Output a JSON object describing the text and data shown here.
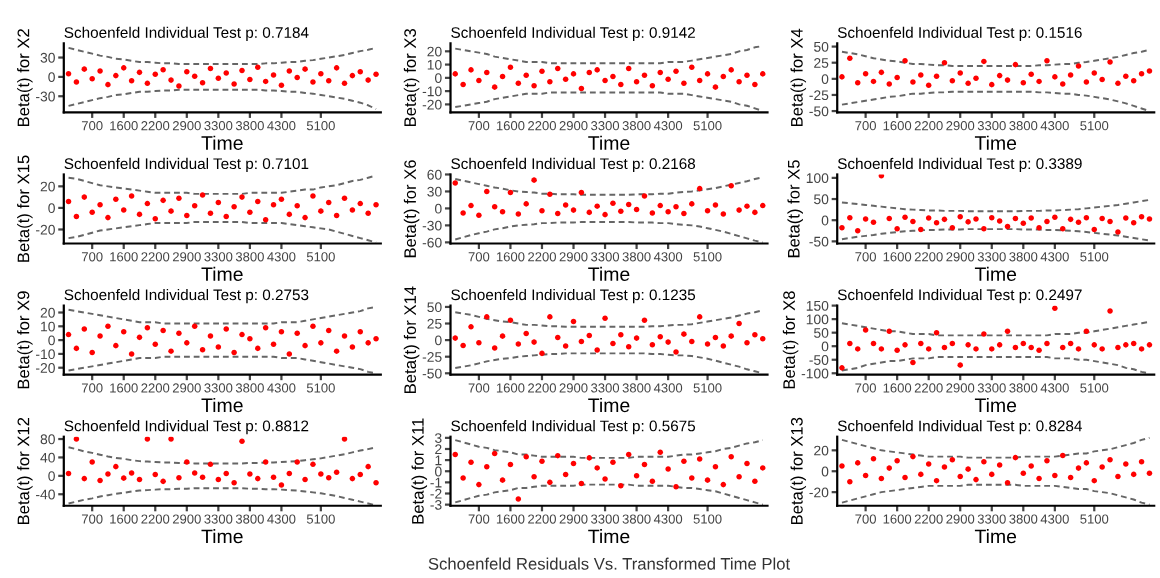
{
  "chart_data": [
    {
      "type": "scatter",
      "title": "Schoenfeld Individual Test p: 0.7184",
      "xlabel": "Time",
      "ylabel": "Beta(t) for X2",
      "categories": [
        null,
        null,
        null,
        "700",
        null,
        null,
        null,
        "1600",
        null,
        null,
        null,
        "2200",
        null,
        null,
        null,
        "2900",
        null,
        null,
        null,
        "3300",
        null,
        null,
        null,
        "3800",
        null,
        null,
        null,
        "4300",
        null,
        null,
        null,
        null,
        "5100",
        null,
        null,
        null,
        null,
        null,
        null,
        null
      ],
      "ylim": [
        -55,
        52
      ],
      "yticks": [
        -30,
        0,
        30
      ],
      "series": [
        {
          "marker": "circle",
          "color": "#ff0000",
          "values": [
            5,
            -8,
            12,
            -3,
            9,
            -12,
            2,
            14,
            -6,
            7,
            -10,
            4,
            11,
            -5,
            -14,
            8,
            1,
            -9,
            13,
            -2,
            6,
            -11,
            10,
            -4,
            15,
            -7,
            3,
            -13,
            9,
            -1,
            12,
            -8,
            5,
            -6,
            14,
            -10,
            2,
            8,
            -5,
            4
          ]
        },
        {
          "type": "line",
          "line_style": "dashed",
          "color": "#666666",
          "values": [
            45,
            42,
            39,
            36,
            33,
            31,
            28,
            27,
            25,
            23,
            23,
            22,
            21,
            21,
            20,
            20,
            20,
            20,
            20,
            20,
            20,
            20,
            20,
            20,
            20,
            21,
            21,
            22,
            23,
            23,
            25,
            26,
            28,
            30,
            32,
            34,
            37,
            40,
            42,
            45
          ]
        },
        {
          "type": "line",
          "line_style": "dashed",
          "color": "#666666",
          "values": [
            -45,
            -42,
            -39,
            -36,
            -33,
            -31,
            -28,
            -27,
            -25,
            -23,
            -23,
            -22,
            -21,
            -21,
            -20,
            -20,
            -20,
            -20,
            -20,
            -20,
            -20,
            -20,
            -20,
            -20,
            -20,
            -21,
            -21,
            -22,
            -23,
            -23,
            -25,
            -26,
            -28,
            -30,
            -32,
            -34,
            -37,
            -40,
            -44,
            -50
          ]
        }
      ]
    },
    {
      "type": "scatter",
      "title": "Schoenfeld Individual Test p: 0.9142",
      "xlabel": "Time",
      "ylabel": "Beta(t) for X3",
      "categories": [
        null,
        null,
        null,
        "700",
        null,
        null,
        null,
        "1600",
        null,
        null,
        null,
        "2200",
        null,
        null,
        null,
        "2900",
        null,
        null,
        null,
        "3300",
        null,
        null,
        null,
        "3800",
        null,
        null,
        null,
        "4300",
        null,
        null,
        null,
        null,
        "5100",
        null,
        null,
        null,
        null,
        null,
        null,
        null
      ],
      "ylim": [
        -26,
        26
      ],
      "yticks": [
        -20,
        -10,
        0,
        10,
        20
      ],
      "series": [
        {
          "marker": "circle",
          "color": "#ff0000",
          "values": [
            3,
            -5,
            6,
            -2,
            4,
            -7,
            1,
            8,
            -4,
            2,
            -6,
            5,
            -3,
            7,
            -1,
            3,
            -8,
            4,
            6,
            -2,
            1,
            -5,
            7,
            -3,
            2,
            -6,
            4,
            -1,
            5,
            -4,
            8,
            -2,
            3,
            -7,
            1,
            6,
            -3,
            2,
            -5,
            3
          ]
        },
        {
          "type": "line",
          "line_style": "dashed",
          "color": "#666666",
          "values": [
            22,
            21,
            20,
            19,
            18,
            16,
            15,
            14,
            13,
            12,
            12,
            12,
            11,
            11,
            11,
            11,
            11,
            11,
            11,
            11,
            11,
            11,
            11,
            11,
            11,
            11,
            11,
            12,
            12,
            12,
            13,
            14,
            15,
            16,
            17,
            18,
            20,
            21,
            23,
            24
          ]
        },
        {
          "type": "line",
          "line_style": "dashed",
          "color": "#666666",
          "values": [
            -22,
            -21,
            -20,
            -19,
            -18,
            -16,
            -15,
            -14,
            -13,
            -12,
            -12,
            -12,
            -11,
            -11,
            -11,
            -11,
            -11,
            -11,
            -11,
            -11,
            -11,
            -11,
            -11,
            -11,
            -11,
            -11,
            -11,
            -12,
            -12,
            -12,
            -13,
            -14,
            -15,
            -16,
            -17,
            -18,
            -20,
            -21,
            -23,
            -25
          ]
        }
      ]
    },
    {
      "type": "scatter",
      "title": "Schoenfeld Individual Test p: 0.1516",
      "xlabel": "Time",
      "ylabel": "Beta(t) for X4",
      "categories": [
        null,
        null,
        null,
        "700",
        null,
        null,
        null,
        "1600",
        null,
        null,
        null,
        "2200",
        null,
        null,
        null,
        "2900",
        null,
        null,
        null,
        "3300",
        null,
        null,
        null,
        "3800",
        null,
        null,
        null,
        "4300",
        null,
        null,
        null,
        null,
        "5100",
        null,
        null,
        null,
        null,
        null,
        null,
        null
      ],
      "ylim": [
        -52,
        55
      ],
      "yticks": [
        -50,
        -25,
        0,
        25,
        50
      ],
      "series": [
        {
          "marker": "circle",
          "color": "#ff0000",
          "values": [
            3,
            32,
            -6,
            8,
            -4,
            10,
            -8,
            2,
            28,
            -5,
            6,
            -10,
            4,
            25,
            -3,
            9,
            -7,
            1,
            27,
            -9,
            5,
            -2,
            22,
            -6,
            7,
            -4,
            28,
            3,
            -8,
            6,
            20,
            -5,
            9,
            -1,
            26,
            -7,
            4,
            -3,
            8,
            12
          ]
        },
        {
          "type": "line",
          "line_style": "dashed",
          "color": "#666666",
          "values": [
            42,
            40,
            38,
            35,
            32,
            30,
            28,
            27,
            25,
            23,
            23,
            22,
            21,
            21,
            20,
            20,
            20,
            20,
            20,
            20,
            20,
            20,
            20,
            20,
            20,
            21,
            21,
            22,
            23,
            23,
            25,
            26,
            28,
            30,
            32,
            34,
            37,
            40,
            42,
            45
          ]
        },
        {
          "type": "line",
          "line_style": "dashed",
          "color": "#666666",
          "values": [
            -40,
            -38,
            -36,
            -34,
            -32,
            -30,
            -28,
            -27,
            -25,
            -23,
            -23,
            -22,
            -21,
            -21,
            -20,
            -20,
            -20,
            -20,
            -20,
            -20,
            -20,
            -20,
            -20,
            -20,
            -20,
            -21,
            -21,
            -22,
            -23,
            -23,
            -25,
            -26,
            -28,
            -30,
            -32,
            -35,
            -38,
            -42,
            -46,
            -50
          ]
        }
      ]
    },
    {
      "type": "scatter",
      "title": "Schoenfeld Individual Test p: 0.7101",
      "xlabel": "Time",
      "ylabel": "Beta(t) for X15",
      "categories": [
        null,
        null,
        null,
        "700",
        null,
        null,
        null,
        "1600",
        null,
        null,
        null,
        "2200",
        null,
        null,
        null,
        "2900",
        null,
        null,
        null,
        "3300",
        null,
        null,
        null,
        "3800",
        null,
        null,
        null,
        "4300",
        null,
        null,
        null,
        null,
        "5100",
        null,
        null,
        null,
        null,
        null,
        null,
        null
      ],
      "ylim": [
        -33,
        31
      ],
      "yticks": [
        -20,
        0,
        20
      ],
      "series": [
        {
          "marker": "circle",
          "color": "#ff0000",
          "values": [
            6,
            -8,
            10,
            -4,
            3,
            -9,
            8,
            -2,
            11,
            -6,
            4,
            -10,
            7,
            -3,
            9,
            -7,
            2,
            12,
            -5,
            5,
            -8,
            1,
            10,
            -4,
            6,
            -11,
            3,
            8,
            -6,
            2,
            -9,
            11,
            -3,
            5,
            -7,
            9,
            -2,
            4,
            -5,
            3
          ]
        },
        {
          "type": "line",
          "line_style": "dashed",
          "color": "#666666",
          "values": [
            28,
            27,
            25,
            23,
            21,
            20,
            19,
            18,
            17,
            16,
            15,
            14,
            14,
            14,
            14,
            14,
            13,
            13,
            13,
            13,
            13,
            13,
            13,
            14,
            14,
            14,
            14,
            14,
            15,
            16,
            17,
            17,
            19,
            20,
            21,
            23,
            25,
            26,
            28,
            30
          ]
        },
        {
          "type": "line",
          "line_style": "dashed",
          "color": "#666666",
          "values": [
            -28,
            -27,
            -25,
            -23,
            -21,
            -20,
            -19,
            -18,
            -17,
            -16,
            -15,
            -14,
            -14,
            -14,
            -14,
            -14,
            -13,
            -13,
            -13,
            -13,
            -13,
            -13,
            -13,
            -14,
            -14,
            -14,
            -14,
            -14,
            -15,
            -16,
            -17,
            -18,
            -19,
            -20,
            -22,
            -24,
            -26,
            -28,
            -30,
            -32
          ]
        }
      ]
    },
    {
      "type": "scatter",
      "title": "Schoenfeld Individual Test p: 0.2168",
      "xlabel": "Time",
      "ylabel": "Beta(t) for X6",
      "categories": [
        null,
        null,
        null,
        "700",
        null,
        null,
        null,
        "1600",
        null,
        null,
        null,
        "2200",
        null,
        null,
        null,
        "2900",
        null,
        null,
        null,
        "3300",
        null,
        null,
        null,
        "3800",
        null,
        null,
        null,
        "4300",
        null,
        null,
        null,
        null,
        "5100",
        null,
        null,
        null,
        null,
        null,
        null,
        null
      ],
      "ylim": [
        -62,
        60
      ],
      "yticks": [
        -60,
        -30,
        0,
        30,
        60
      ],
      "series": [
        {
          "marker": "circle",
          "color": "#ff0000",
          "values": [
            45,
            -8,
            5,
            -12,
            30,
            3,
            -6,
            28,
            -10,
            8,
            50,
            -4,
            25,
            -9,
            6,
            -3,
            28,
            -7,
            4,
            -11,
            9,
            -5,
            7,
            -2,
            22,
            -8,
            5,
            -6,
            3,
            -9,
            8,
            35,
            -4,
            6,
            -10,
            40,
            -3,
            4,
            -7,
            5
          ]
        },
        {
          "type": "line",
          "line_style": "dashed",
          "color": "#666666",
          "values": [
            52,
            49,
            46,
            43,
            40,
            37,
            35,
            32,
            30,
            29,
            28,
            26,
            26,
            25,
            25,
            25,
            24,
            24,
            24,
            24,
            24,
            24,
            24,
            25,
            25,
            25,
            26,
            26,
            28,
            29,
            30,
            32,
            34,
            36,
            39,
            42,
            45,
            48,
            52,
            55
          ]
        },
        {
          "type": "line",
          "line_style": "dashed",
          "color": "#666666",
          "values": [
            -55,
            -51,
            -47,
            -44,
            -41,
            -37,
            -35,
            -32,
            -30,
            -29,
            -28,
            -26,
            -26,
            -25,
            -25,
            -25,
            -24,
            -24,
            -24,
            -24,
            -24,
            -24,
            -24,
            -25,
            -25,
            -25,
            -26,
            -26,
            -28,
            -29,
            -30,
            -32,
            -35,
            -38,
            -41,
            -45,
            -49,
            -53,
            -57,
            -60
          ]
        }
      ]
    },
    {
      "type": "scatter",
      "title": "Schoenfeld Individual Test p: 0.3389",
      "xlabel": "Time",
      "ylabel": "Beta(t) for X5",
      "categories": [
        null,
        null,
        null,
        "700",
        null,
        null,
        null,
        "1600",
        null,
        null,
        null,
        "2200",
        null,
        null,
        null,
        "2900",
        null,
        null,
        null,
        "3300",
        null,
        null,
        null,
        "3800",
        null,
        null,
        null,
        "4300",
        null,
        null,
        null,
        null,
        "5100",
        null,
        null,
        null,
        null,
        null,
        null,
        null
      ],
      "ylim": [
        -55,
        108
      ],
      "yticks": [
        -50,
        0,
        50,
        100
      ],
      "series": [
        {
          "marker": "circle",
          "color": "#ff0000",
          "values": [
            -18,
            6,
            -25,
            3,
            -5,
            105,
            4,
            -20,
            7,
            -3,
            -22,
            5,
            -6,
            2,
            -18,
            8,
            -4,
            3,
            -20,
            6,
            -2,
            -15,
            4,
            -7,
            5,
            -18,
            -3,
            7,
            -20,
            2,
            -5,
            6,
            -22,
            4,
            -3,
            -28,
            5,
            -6,
            8,
            3
          ]
        },
        {
          "type": "line",
          "line_style": "dashed",
          "color": "#666666",
          "values": [
            42,
            40,
            38,
            36,
            34,
            32,
            30,
            28,
            26,
            25,
            24,
            23,
            23,
            22,
            22,
            22,
            21,
            21,
            21,
            21,
            21,
            21,
            21,
            22,
            22,
            22,
            23,
            23,
            24,
            25,
            26,
            28,
            30,
            32,
            34,
            36,
            39,
            42,
            45,
            48
          ]
        },
        {
          "type": "line",
          "line_style": "dashed",
          "color": "#666666",
          "values": [
            -45,
            -42,
            -39,
            -37,
            -35,
            -32,
            -30,
            -28,
            -26,
            -25,
            -24,
            -23,
            -23,
            -22,
            -22,
            -22,
            -21,
            -21,
            -21,
            -21,
            -21,
            -21,
            -21,
            -22,
            -22,
            -22,
            -23,
            -23,
            -24,
            -25,
            -26,
            -28,
            -30,
            -32,
            -34,
            -36,
            -39,
            -42,
            -45,
            -48
          ]
        }
      ]
    },
    {
      "type": "scatter",
      "title": "Schoenfeld Individual Test p: 0.2753",
      "xlabel": "Time",
      "ylabel": "Beta(t) for X9",
      "categories": [
        null,
        null,
        null,
        "700",
        null,
        null,
        null,
        "1600",
        null,
        null,
        null,
        "2200",
        null,
        null,
        null,
        "2900",
        null,
        null,
        null,
        "3300",
        null,
        null,
        null,
        "3800",
        null,
        null,
        null,
        "4300",
        null,
        null,
        null,
        null,
        "5100",
        null,
        null,
        null,
        null,
        null,
        null,
        null
      ],
      "ylim": [
        -25,
        25
      ],
      "yticks": [
        -20,
        -10,
        0,
        10,
        20
      ],
      "series": [
        {
          "marker": "circle",
          "color": "#ff0000",
          "values": [
            4,
            -6,
            8,
            -9,
            3,
            10,
            -4,
            6,
            -10,
            2,
            9,
            -3,
            7,
            -8,
            5,
            -2,
            10,
            -7,
            3,
            -5,
            8,
            -9,
            4,
            1,
            -6,
            9,
            -3,
            6,
            -10,
            5,
            -4,
            10,
            -2,
            7,
            -8,
            3,
            -5,
            6,
            -2,
            1
          ]
        },
        {
          "type": "line",
          "line_style": "dashed",
          "color": "#666666",
          "values": [
            22,
            21,
            20,
            19,
            18,
            17,
            16,
            15,
            14,
            13,
            13,
            13,
            12,
            12,
            12,
            12,
            12,
            12,
            12,
            12,
            12,
            12,
            12,
            12,
            12,
            12,
            12,
            13,
            13,
            13,
            14,
            15,
            16,
            17,
            18,
            19,
            20,
            21,
            23,
            24
          ]
        },
        {
          "type": "line",
          "line_style": "dashed",
          "color": "#666666",
          "values": [
            -22,
            -21,
            -20,
            -19,
            -18,
            -17,
            -16,
            -15,
            -14,
            -13,
            -13,
            -13,
            -12,
            -12,
            -12,
            -12,
            -12,
            -12,
            -12,
            -12,
            -12,
            -12,
            -12,
            -12,
            -12,
            -12,
            -12,
            -13,
            -13,
            -13,
            -14,
            -15,
            -16,
            -17,
            -18,
            -19,
            -20,
            -21,
            -23,
            -24
          ]
        }
      ]
    },
    {
      "type": "scatter",
      "title": "Schoenfeld Individual Test p: 0.1235",
      "xlabel": "Time",
      "ylabel": "Beta(t) for X14",
      "categories": [
        null,
        null,
        null,
        "700",
        null,
        null,
        null,
        "1600",
        null,
        null,
        null,
        "2200",
        null,
        null,
        null,
        "2900",
        null,
        null,
        null,
        "3300",
        null,
        null,
        null,
        "3800",
        null,
        null,
        null,
        "4300",
        null,
        null,
        null,
        null,
        "5100",
        null,
        null,
        null,
        null,
        null,
        null,
        null
      ],
      "ylim": [
        -52,
        52
      ],
      "yticks": [
        -50,
        -25,
        0,
        25,
        50
      ],
      "series": [
        {
          "marker": "circle",
          "color": "#ff0000",
          "values": [
            3,
            -8,
            20,
            -4,
            35,
            -12,
            6,
            30,
            -6,
            10,
            -3,
            -20,
            35,
            4,
            -9,
            28,
            -2,
            7,
            -15,
            33,
            -5,
            8,
            -10,
            3,
            30,
            -7,
            5,
            -3,
            -18,
            9,
            -2,
            35,
            -6,
            4,
            -9,
            6,
            25,
            -4,
            8,
            2
          ]
        },
        {
          "type": "line",
          "line_style": "dashed",
          "color": "#666666",
          "values": [
            42,
            40,
            38,
            35,
            32,
            30,
            28,
            27,
            25,
            23,
            23,
            22,
            21,
            21,
            20,
            20,
            20,
            20,
            20,
            20,
            20,
            20,
            20,
            20,
            20,
            21,
            21,
            22,
            23,
            23,
            24,
            26,
            28,
            30,
            32,
            34,
            37,
            40,
            42,
            45
          ]
        },
        {
          "type": "line",
          "line_style": "dashed",
          "color": "#666666",
          "values": [
            -42,
            -40,
            -38,
            -35,
            -32,
            -30,
            -28,
            -27,
            -25,
            -24,
            -23,
            -22,
            -21,
            -21,
            -20,
            -20,
            -20,
            -20,
            -20,
            -20,
            -20,
            -20,
            -20,
            -20,
            -20,
            -21,
            -21,
            -22,
            -23,
            -23,
            -24,
            -26,
            -28,
            -31,
            -34,
            -37,
            -40,
            -44,
            -47,
            -50
          ]
        }
      ]
    },
    {
      "type": "scatter",
      "title": "Schoenfeld Individual Test p: 0.2497",
      "xlabel": "Time",
      "ylabel": "Beta(t) for X8",
      "categories": [
        null,
        null,
        null,
        "700",
        null,
        null,
        null,
        "1600",
        null,
        null,
        null,
        "2200",
        null,
        null,
        null,
        "2900",
        null,
        null,
        null,
        "3300",
        null,
        null,
        null,
        "3800",
        null,
        null,
        null,
        "4300",
        null,
        null,
        null,
        null,
        "5100",
        null,
        null,
        null,
        null,
        null,
        null,
        null
      ],
      "ylim": [
        -105,
        150
      ],
      "yticks": [
        -100,
        -50,
        0,
        50,
        100,
        150
      ],
      "series": [
        {
          "marker": "circle",
          "color": "#ff0000",
          "values": [
            -80,
            10,
            -10,
            60,
            10,
            -10,
            55,
            -15,
            5,
            -60,
            10,
            -10,
            50,
            -5,
            10,
            -70,
            5,
            -10,
            45,
            -10,
            5,
            55,
            -5,
            10,
            -5,
            -15,
            10,
            140,
            -5,
            10,
            -10,
            55,
            5,
            -10,
            130,
            -5,
            5,
            10,
            -10,
            5
          ]
        },
        {
          "type": "line",
          "line_style": "dashed",
          "color": "#666666",
          "values": [
            85,
            80,
            75,
            70,
            65,
            60,
            55,
            55,
            50,
            45,
            45,
            45,
            40,
            40,
            40,
            40,
            40,
            40,
            40,
            40,
            40,
            40,
            40,
            40,
            40,
            40,
            40,
            45,
            45,
            45,
            50,
            50,
            55,
            60,
            65,
            70,
            75,
            80,
            85,
            90
          ]
        },
        {
          "type": "line",
          "line_style": "dashed",
          "color": "#666666",
          "values": [
            -90,
            -85,
            -80,
            -70,
            -65,
            -60,
            -55,
            -55,
            -50,
            -45,
            -45,
            -45,
            -40,
            -40,
            -40,
            -40,
            -40,
            -40,
            -40,
            -40,
            -40,
            -40,
            -40,
            -40,
            -40,
            -40,
            -40,
            -45,
            -45,
            -45,
            -50,
            -50,
            -55,
            -60,
            -65,
            -70,
            -80,
            -85,
            -95,
            -100
          ]
        }
      ]
    },
    {
      "type": "scatter",
      "title": "Schoenfeld Individual Test p: 0.8812",
      "xlabel": "Time",
      "ylabel": "Beta(t) for X12",
      "categories": [
        null,
        null,
        null,
        "700",
        null,
        null,
        null,
        "1600",
        null,
        null,
        null,
        "2200",
        null,
        null,
        null,
        "2900",
        null,
        null,
        null,
        "3300",
        null,
        null,
        null,
        "3800",
        null,
        null,
        null,
        "4300",
        null,
        null,
        null,
        null,
        "5100",
        null,
        null,
        null,
        null,
        null,
        null,
        null
      ],
      "ylim": [
        -65,
        85
      ],
      "yticks": [
        -40,
        0,
        40,
        80
      ],
      "series": [
        {
          "marker": "circle",
          "color": "#ff0000",
          "values": [
            5,
            80,
            -6,
            30,
            -10,
            4,
            20,
            -5,
            6,
            -8,
            80,
            3,
            -12,
            80,
            -4,
            30,
            6,
            -3,
            25,
            -8,
            5,
            -15,
            75,
            4,
            -6,
            30,
            -3,
            -20,
            5,
            30,
            -8,
            25,
            4,
            -4,
            8,
            80,
            -6,
            3,
            20,
            -15
          ]
        },
        {
          "type": "line",
          "line_style": "dashed",
          "color": "#666666",
          "values": [
            62,
            58,
            53,
            50,
            46,
            42,
            39,
            37,
            34,
            32,
            31,
            30,
            29,
            29,
            28,
            28,
            27,
            27,
            27,
            27,
            27,
            27,
            27,
            28,
            28,
            29,
            29,
            30,
            31,
            32,
            34,
            36,
            38,
            41,
            44,
            47,
            51,
            55,
            58,
            62
          ]
        },
        {
          "type": "line",
          "line_style": "dashed",
          "color": "#666666",
          "values": [
            -60,
            -56,
            -52,
            -49,
            -45,
            -42,
            -39,
            -37,
            -34,
            -32,
            -31,
            -30,
            -29,
            -29,
            -28,
            -28,
            -27,
            -27,
            -27,
            -27,
            -27,
            -27,
            -27,
            -28,
            -28,
            -29,
            -29,
            -30,
            -31,
            -32,
            -34,
            -36,
            -38,
            -41,
            -44,
            -48,
            -52,
            -56,
            -60,
            -64
          ]
        }
      ]
    },
    {
      "type": "scatter",
      "title": "Schoenfeld Individual Test p: 0.5675",
      "xlabel": "Time",
      "ylabel": "Beta(t) for X11",
      "annotations": [
        "Schoenfeld Residuals Vs. Transformed Time Plot"
      ],
      "categories": [
        null,
        null,
        null,
        "700",
        null,
        null,
        null,
        "1600",
        null,
        null,
        null,
        "2200",
        null,
        null,
        null,
        "2900",
        null,
        null,
        null,
        "3300",
        null,
        null,
        null,
        "3800",
        null,
        null,
        null,
        "4300",
        null,
        null,
        null,
        null,
        "5100",
        null,
        null,
        null,
        null,
        null,
        null,
        null
      ],
      "ylim": [
        -3.1,
        3.1
      ],
      "yticks": [
        -3,
        -2,
        -1,
        0,
        1,
        2,
        3
      ],
      "series": [
        {
          "marker": "circle",
          "color": "#ff0000",
          "values": [
            1.5,
            -0.6,
            0.8,
            -1.2,
            0.4,
            1.6,
            -0.8,
            0.6,
            -2.5,
            1.3,
            -0.5,
            0.9,
            -1,
            1.4,
            -0.3,
            0.7,
            -1.1,
            1.2,
            0.3,
            -0.7,
            0.8,
            -1.3,
            1.5,
            -0.4,
            0.6,
            -0.9,
            1.7,
            0.2,
            -1.4,
            0.9,
            -0.6,
            1.1,
            -0.8,
            0.4,
            -1.2,
            1.3,
            -0.5,
            0.7,
            -0.9,
            0.3
          ]
        },
        {
          "type": "line",
          "line_style": "dashed",
          "color": "#666666",
          "values": [
            2.8,
            2.6,
            2.4,
            2.2,
            2.1,
            1.9,
            1.8,
            1.7,
            1.5,
            1.5,
            1.4,
            1.3,
            1.3,
            1.3,
            1.3,
            1.3,
            1.2,
            1.2,
            1.2,
            1.2,
            1.2,
            1.2,
            1.2,
            1.3,
            1.3,
            1.3,
            1.3,
            1.3,
            1.4,
            1.5,
            1.5,
            1.6,
            1.7,
            1.8,
            2,
            2.1,
            2.3,
            2.5,
            2.6,
            2.8
          ]
        },
        {
          "type": "line",
          "line_style": "dashed",
          "color": "#666666",
          "values": [
            -2.8,
            -2.6,
            -2.4,
            -2.2,
            -2.1,
            -1.9,
            -1.8,
            -1.7,
            -1.5,
            -1.5,
            -1.4,
            -1.3,
            -1.3,
            -1.3,
            -1.3,
            -1.3,
            -1.2,
            -1.2,
            -1.2,
            -1.2,
            -1.2,
            -1.2,
            -1.2,
            -1.3,
            -1.3,
            -1.3,
            -1.3,
            -1.3,
            -1.4,
            -1.5,
            -1.5,
            -1.6,
            -1.7,
            -1.8,
            -2,
            -2.2,
            -2.4,
            -2.6,
            -2.8,
            -3
          ]
        }
      ]
    },
    {
      "type": "scatter",
      "title": "Schoenfeld Individual Test p: 0.8284",
      "xlabel": "Time",
      "ylabel": "Beta(t) for X13",
      "categories": [
        null,
        null,
        null,
        "700",
        null,
        null,
        null,
        "1600",
        null,
        null,
        null,
        "2200",
        null,
        null,
        null,
        "2900",
        null,
        null,
        null,
        "3300",
        null,
        null,
        null,
        "3800",
        null,
        null,
        null,
        "4300",
        null,
        null,
        null,
        null,
        "5100",
        null,
        null,
        null,
        null,
        null,
        null,
        null
      ],
      "ylim": [
        -33,
        33
      ],
      "yticks": [
        -20,
        0,
        20
      ],
      "series": [
        {
          "marker": "circle",
          "color": "#ff0000",
          "values": [
            5,
            -10,
            8,
            -4,
            12,
            -7,
            3,
            10,
            -6,
            14,
            -3,
            7,
            -9,
            4,
            11,
            -5,
            2,
            -8,
            9,
            -3,
            6,
            -11,
            13,
            -2,
            5,
            -7,
            10,
            -4,
            15,
            -6,
            3,
            8,
            -9,
            4,
            11,
            -5,
            7,
            -3,
            9,
            -2
          ]
        },
        {
          "type": "line",
          "line_style": "dashed",
          "color": "#666666",
          "values": [
            30,
            28,
            26,
            24,
            22,
            20,
            19,
            18,
            17,
            16,
            15,
            14,
            14,
            14,
            14,
            14,
            13,
            13,
            13,
            13,
            13,
            13,
            13,
            14,
            14,
            14,
            14,
            14,
            15,
            16,
            17,
            17,
            19,
            20,
            21,
            23,
            25,
            27,
            30,
            32
          ]
        },
        {
          "type": "line",
          "line_style": "dashed",
          "color": "#666666",
          "values": [
            -30,
            -28,
            -26,
            -24,
            -22,
            -20,
            -19,
            -18,
            -17,
            -16,
            -15,
            -14,
            -14,
            -14,
            -14,
            -14,
            -13,
            -13,
            -13,
            -13,
            -13,
            -13,
            -13,
            -14,
            -14,
            -14,
            -14,
            -14,
            -15,
            -16,
            -17,
            -17,
            -19,
            -20,
            -21,
            -23,
            -25,
            -27,
            -30,
            -32
          ]
        }
      ]
    }
  ]
}
